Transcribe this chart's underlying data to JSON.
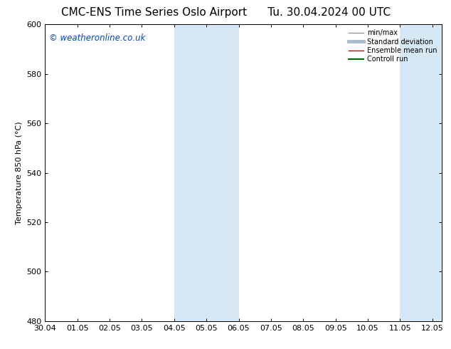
{
  "title": "CMC-ENS Time Series Oslo Airport      Tu. 30.04.2024 00 UTC",
  "ylabel": "Temperature 850 hPa (°C)",
  "ylim": [
    480,
    600
  ],
  "yticks": [
    480,
    500,
    520,
    540,
    560,
    580,
    600
  ],
  "xtick_labels": [
    "30.04",
    "01.05",
    "02.05",
    "03.05",
    "04.05",
    "05.05",
    "06.05",
    "07.05",
    "08.05",
    "09.05",
    "10.05",
    "11.05",
    "12.05"
  ],
  "xlim": [
    0,
    12.3
  ],
  "shaded_bands": [
    {
      "x_start": 4,
      "x_end": 6,
      "color": "#d6e8f5"
    },
    {
      "x_start": 11,
      "x_end": 12.3,
      "color": "#d6e8f5"
    }
  ],
  "watermark_text": "© weatheronline.co.uk",
  "watermark_color": "#0044bb",
  "legend_items": [
    {
      "label": "min/max",
      "color": "#999999",
      "lw": 1.0
    },
    {
      "label": "Standard deviation",
      "color": "#aabbcc",
      "lw": 3.5
    },
    {
      "label": "Ensemble mean run",
      "color": "#cc0000",
      "lw": 1.0
    },
    {
      "label": "Controll run",
      "color": "#006600",
      "lw": 1.5
    }
  ],
  "bg_color": "#ffffff",
  "title_fontsize": 11,
  "axis_fontsize": 8,
  "ylabel_fontsize": 8
}
